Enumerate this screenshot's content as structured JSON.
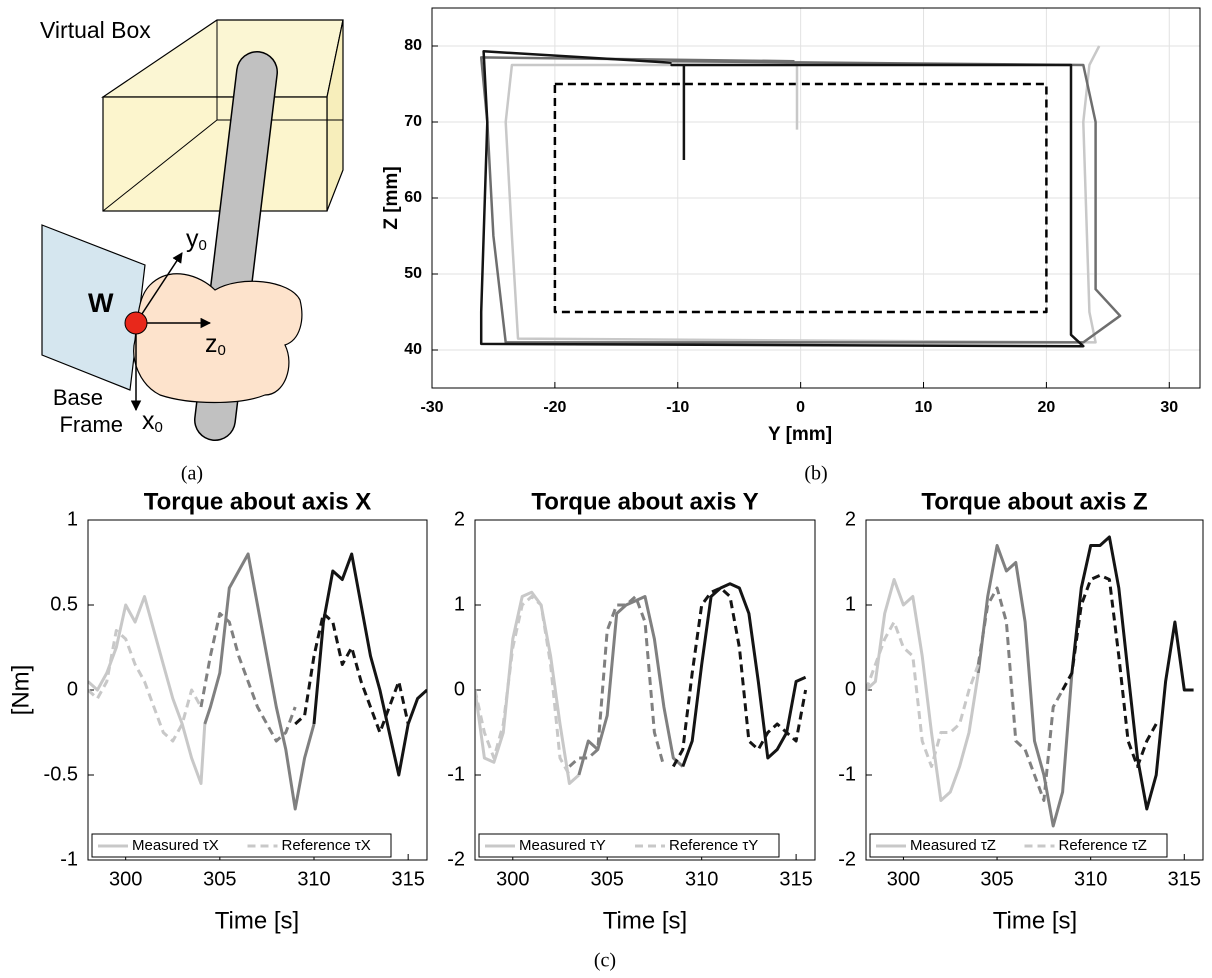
{
  "figure_a": {
    "box_label": "Virtual Box",
    "point_label": "W",
    "axes": [
      {
        "text": "y",
        "sub": "0"
      },
      {
        "text": "z",
        "sub": "0"
      },
      {
        "text": "x",
        "sub": "0"
      }
    ],
    "frame_label": [
      "Base",
      "Frame"
    ],
    "caption": "(a)"
  },
  "caption_c": "(c)",
  "chart_data": [
    {
      "type": "line",
      "caption": "(b)",
      "xlabel": "Y [mm]",
      "ylabel": "Z [mm]",
      "xlim": [
        -30,
        32.5
      ],
      "ylim": [
        35,
        85
      ],
      "xticks": [
        -30,
        -20,
        -10,
        0,
        10,
        20,
        30
      ],
      "yticks": [
        40,
        50,
        60,
        70,
        80
      ],
      "grid": true,
      "series": [
        {
          "color": "#000000",
          "dash": true,
          "x": [
            -20,
            20,
            20,
            -20,
            -20
          ],
          "values": [
            75,
            75,
            45,
            45,
            75
          ]
        },
        {
          "color": "#c8c8c8",
          "dash": false,
          "x": [
            -0.3,
            -0.3,
            -23.5,
            -24,
            -23.5,
            -23,
            24,
            23.5,
            23,
            23.5,
            24.3
          ],
          "values": [
            69,
            77.5,
            77.5,
            70,
            55,
            41.5,
            41,
            45,
            70,
            77.5,
            80
          ]
        },
        {
          "color": "#6e6e6e",
          "dash": false,
          "x": [
            -0.5,
            -26,
            -25.5,
            -25,
            -24,
            23,
            26,
            24,
            24,
            23,
            -10.5
          ],
          "values": [
            78,
            78.5,
            70,
            55,
            41,
            41,
            44.5,
            48,
            70,
            77.5,
            78
          ]
        },
        {
          "color": "#141414",
          "dash": false,
          "x": [
            -9.5,
            -9.5,
            -10.5,
            22,
            22,
            23,
            -26,
            -26,
            -25.5,
            -25.8,
            -10.5
          ],
          "values": [
            65,
            77.5,
            77.5,
            77.5,
            42,
            40.5,
            40.8,
            45,
            70,
            79.3,
            77.8
          ]
        }
      ]
    },
    {
      "type": "line",
      "title": "Torque about axis X",
      "xlabel": "Time [s]",
      "ylabel": "[Nm]",
      "xlim": [
        298,
        316
      ],
      "ylim": [
        -1,
        1
      ],
      "xticks": [
        300,
        305,
        310,
        315
      ],
      "yticks": [
        -1,
        -0.5,
        0,
        0.5,
        1
      ],
      "grid": false,
      "series": [
        {
          "name": "Measured τX",
          "dash": false,
          "segments": [
            {
              "color": "#c8c8c8",
              "x": [
                298,
                298.5,
                299,
                299.5,
                300,
                300.5,
                301,
                301.5,
                302,
                302.5,
                303,
                303.5,
                304,
                304.2
              ],
              "values": [
                0.05,
                0,
                0.1,
                0.25,
                0.5,
                0.4,
                0.55,
                0.35,
                0.15,
                -0.05,
                -0.2,
                -0.4,
                -0.55,
                -0.2
              ]
            },
            {
              "color": "#808080",
              "x": [
                304.2,
                304.5,
                305,
                305.5,
                306,
                306.5,
                307,
                307.5,
                308,
                308.5,
                309,
                309.5,
                310
              ],
              "values": [
                -0.2,
                -0.1,
                0.1,
                0.6,
                0.7,
                0.8,
                0.5,
                0.2,
                -0.1,
                -0.35,
                -0.7,
                -0.4,
                -0.2
              ]
            },
            {
              "color": "#141414",
              "x": [
                310,
                310.5,
                311,
                311.5,
                312,
                312.5,
                313,
                313.5,
                314,
                314.5,
                315,
                315.5,
                316
              ],
              "values": [
                -0.2,
                0.4,
                0.7,
                0.65,
                0.8,
                0.5,
                0.2,
                0,
                -0.25,
                -0.5,
                -0.2,
                -0.05,
                0
              ]
            }
          ]
        },
        {
          "name": "Reference τX",
          "dash": true,
          "segments": [
            {
              "color": "#c8c8c8",
              "x": [
                298,
                298.5,
                299,
                299.5,
                300,
                300.5,
                301,
                301.5,
                302,
                302.5,
                303,
                303.5,
                304
              ],
              "values": [
                0,
                -0.05,
                0.05,
                0.35,
                0.3,
                0.15,
                0.05,
                -0.1,
                -0.25,
                -0.3,
                -0.2,
                0,
                -0.1
              ]
            },
            {
              "color": "#808080",
              "x": [
                304,
                304.5,
                305,
                305.5,
                306,
                306.5,
                307,
                307.5,
                308,
                308.5,
                309
              ],
              "values": [
                -0.1,
                0.2,
                0.45,
                0.4,
                0.2,
                0.05,
                -0.1,
                -0.2,
                -0.3,
                -0.25,
                -0.1
              ]
            },
            {
              "color": "#141414",
              "x": [
                309,
                309.5,
                310,
                310.5,
                311,
                311.5,
                312,
                312.5,
                313,
                313.5,
                314,
                314.5,
                315
              ],
              "values": [
                -0.2,
                -0.15,
                0.2,
                0.45,
                0.4,
                0.15,
                0.25,
                0.05,
                -0.1,
                -0.25,
                -0.1,
                0.05,
                -0.2
              ]
            }
          ]
        }
      ]
    },
    {
      "type": "line",
      "title": "Torque about axis Y",
      "xlabel": "Time [s]",
      "xlim": [
        298,
        316
      ],
      "ylim": [
        -2,
        2
      ],
      "xticks": [
        300,
        305,
        310,
        315
      ],
      "yticks": [
        -2,
        -1,
        0,
        1,
        2
      ],
      "grid": false,
      "series": [
        {
          "name": "Measured τY",
          "dash": false,
          "segments": [
            {
              "color": "#c8c8c8",
              "x": [
                298,
                298.5,
                299,
                299.5,
                300,
                300.5,
                301,
                301.5,
                302,
                302.5,
                303,
                303.5
              ],
              "values": [
                0,
                -0.8,
                -0.85,
                -0.5,
                0.6,
                1.1,
                1.15,
                1.0,
                0.4,
                -0.4,
                -1.1,
                -1.0
              ]
            },
            {
              "color": "#808080",
              "x": [
                303.5,
                304,
                304.5,
                305,
                305.5,
                306,
                306.5,
                307,
                307.5,
                308,
                308.5,
                309
              ],
              "values": [
                -1.0,
                -0.6,
                -0.7,
                -0.3,
                0.9,
                1.0,
                1.05,
                1.1,
                0.6,
                -0.2,
                -0.8,
                -0.9
              ]
            },
            {
              "color": "#141414",
              "x": [
                309,
                309.5,
                310,
                310.5,
                311,
                311.5,
                312,
                312.5,
                313,
                313.5,
                314,
                314.5,
                315,
                315.5
              ],
              "values": [
                -0.9,
                -0.6,
                0.3,
                1.1,
                1.2,
                1.25,
                1.2,
                0.9,
                0.1,
                -0.8,
                -0.7,
                -0.5,
                0.1,
                0.15
              ]
            }
          ]
        },
        {
          "name": "Reference τY",
          "dash": true,
          "segments": [
            {
              "color": "#c8c8c8",
              "x": [
                298,
                298.5,
                299,
                299.5,
                300,
                300.5,
                301,
                301.5,
                302,
                302.5,
                303
              ],
              "values": [
                0,
                -0.5,
                -0.8,
                -0.4,
                0.5,
                1.0,
                1.1,
                1.0,
                0.3,
                -0.8,
                -1.0
              ]
            },
            {
              "color": "#808080",
              "x": [
                303,
                303.5,
                304,
                304.5,
                305,
                305.5,
                306,
                306.5,
                307,
                307.5,
                308
              ],
              "values": [
                -0.9,
                -0.8,
                -0.8,
                -0.7,
                0.7,
                1.0,
                1.0,
                1.1,
                0.8,
                -0.5,
                -0.9
              ]
            },
            {
              "color": "#141414",
              "x": [
                308.5,
                309,
                309.5,
                310,
                310.5,
                311,
                311.5,
                312,
                312.5,
                313,
                313.5,
                314,
                315,
                315.5
              ],
              "values": [
                -0.9,
                -0.7,
                0.2,
                1.0,
                1.15,
                1.2,
                1.1,
                0.5,
                -0.6,
                -0.7,
                -0.5,
                -0.4,
                -0.6,
                0
              ]
            }
          ]
        }
      ]
    },
    {
      "type": "line",
      "title": "Torque about axis Z",
      "xlabel": "Time [s]",
      "xlim": [
        298,
        316
      ],
      "ylim": [
        -2,
        2
      ],
      "xticks": [
        300,
        305,
        310,
        315
      ],
      "yticks": [
        -2,
        -1,
        0,
        1,
        2
      ],
      "grid": false,
      "series": [
        {
          "name": "Measured τZ",
          "dash": false,
          "segments": [
            {
              "color": "#c8c8c8",
              "x": [
                298,
                298.5,
                299,
                299.5,
                300,
                300.5,
                301,
                301.5,
                302,
                302.5,
                303,
                303.5,
                304
              ],
              "values": [
                0,
                0.1,
                0.9,
                1.3,
                1.0,
                1.1,
                0.4,
                -0.5,
                -1.3,
                -1.2,
                -0.9,
                -0.5,
                0.2
              ]
            },
            {
              "color": "#808080",
              "x": [
                304,
                304.5,
                305,
                305.5,
                306,
                306.5,
                307,
                307.5,
                308,
                308.5,
                309
              ],
              "values": [
                0.2,
                1.1,
                1.7,
                1.4,
                1.5,
                0.8,
                -0.6,
                -1.0,
                -1.6,
                -1.2,
                0.2
              ]
            },
            {
              "color": "#141414",
              "x": [
                309,
                309.5,
                310,
                310.5,
                311,
                311.5,
                312,
                312.5,
                313,
                313.5,
                314,
                314.5,
                315,
                315.5
              ],
              "values": [
                0.2,
                1.2,
                1.7,
                1.7,
                1.8,
                1.2,
                0.2,
                -0.8,
                -1.4,
                -1.0,
                0.1,
                0.8,
                0,
                0
              ]
            }
          ]
        },
        {
          "name": "Reference τZ",
          "dash": true,
          "segments": [
            {
              "color": "#c8c8c8",
              "x": [
                298,
                298.5,
                299,
                299.5,
                300,
                300.5,
                301,
                301.5,
                302,
                302.5,
                303,
                303.5,
                304
              ],
              "values": [
                0,
                0.3,
                0.6,
                0.8,
                0.5,
                0.4,
                -0.6,
                -0.9,
                -0.5,
                -0.5,
                -0.4,
                0,
                0.3
              ]
            },
            {
              "color": "#808080",
              "x": [
                304,
                304.5,
                305,
                305.5,
                306,
                306.5,
                307,
                307.5,
                308,
                308.5
              ],
              "values": [
                0.3,
                1.0,
                1.2,
                0.8,
                -0.6,
                -0.7,
                -1.0,
                -1.3,
                -0.2,
                0
              ]
            },
            {
              "color": "#141414",
              "x": [
                308.5,
                309,
                309.5,
                310,
                310.5,
                311,
                311.5,
                312,
                312.5,
                313,
                313.5
              ],
              "values": [
                0,
                0.2,
                1.0,
                1.3,
                1.35,
                1.3,
                0.4,
                -0.6,
                -0.9,
                -0.6,
                -0.4
              ]
            }
          ]
        }
      ]
    }
  ]
}
